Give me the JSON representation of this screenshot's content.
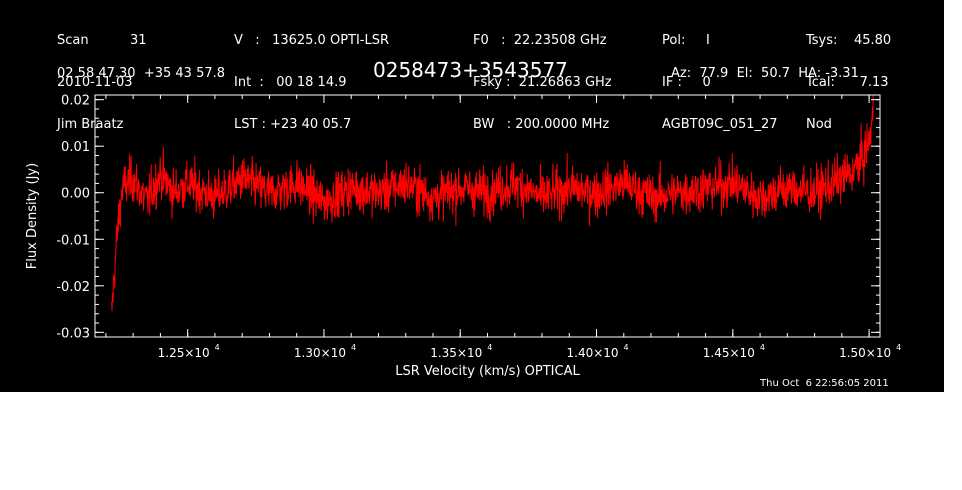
{
  "header": {
    "col1": {
      "scan_label": "Scan",
      "scan_value": "31",
      "date": "2010-11-03",
      "observer": "Jim Braatz"
    },
    "col2": {
      "line1": "V   :   13625.0 OPTI-LSR",
      "line2": "Int  :   00 18 14.9",
      "line3": "LST : +23 40 05.7"
    },
    "col3": {
      "line1": "F0   :  22.23508 GHz",
      "line2": "Fsky :  21.26863 GHz",
      "line3": "BW   : 200.0000 MHz"
    },
    "col4": {
      "line1": "Pol:     I",
      "line2": "IF :     0",
      "line3": "AGBT09C_051_27"
    },
    "col5": {
      "line1": "Tsys:    45.80",
      "line2": "Tcal:      7.13",
      "line3": "Nod"
    },
    "coordinates": "02 58 47.30  +35 43 57.8",
    "source": "0258473+3543577",
    "pointing": "Az:  77.9  El:  50.7  HA: -3.31",
    "timestamp": "Thu Oct  6 22:56:05 2011"
  },
  "colors": {
    "background": "#000000",
    "axes": "#ffffff",
    "trace": "#ff0000"
  },
  "chart_data": {
    "type": "line",
    "xlabel": "LSR Velocity (km/s) OPTICAL",
    "ylabel": "Flux Density (Jy)",
    "xlim": [
      12160,
      15040
    ],
    "ylim": [
      -0.031,
      0.021
    ],
    "xticks": [
      12500,
      13000,
      13500,
      14000,
      14500,
      15000
    ],
    "xtick_labels": [
      "1.25×10",
      "1.30×10",
      "1.35×10",
      "1.40×10",
      "1.45×10",
      "1.50×10"
    ],
    "xtick_exponent": "4",
    "yticks": [
      0.02,
      0.01,
      0.0,
      -0.01,
      -0.02,
      -0.03
    ],
    "ytick_labels": [
      "0.02",
      "0.01",
      "0.00",
      "-0.01",
      "-0.02",
      "-0.03"
    ],
    "series": [
      {
        "points": [
          [
            12220,
            -0.027
          ],
          [
            12230,
            -0.018
          ],
          [
            12240,
            -0.01
          ],
          [
            12250,
            -0.004
          ],
          [
            12260,
            0.001
          ],
          [
            12300,
            0.003
          ],
          [
            12350,
            -0.002
          ],
          [
            12400,
            0.004
          ],
          [
            12450,
            0.0
          ],
          [
            12500,
            0.002
          ],
          [
            12600,
            -0.001
          ],
          [
            12700,
            0.003
          ],
          [
            12800,
            0.0
          ],
          [
            12900,
            0.002
          ],
          [
            13000,
            -0.002
          ],
          [
            13100,
            0.001
          ],
          [
            13200,
            0.0
          ],
          [
            13300,
            0.002
          ],
          [
            13400,
            -0.001
          ],
          [
            13500,
            0.001
          ],
          [
            13600,
            0.0
          ],
          [
            13700,
            0.002
          ],
          [
            13800,
            -0.001
          ],
          [
            13900,
            0.001
          ],
          [
            14000,
            0.0
          ],
          [
            14100,
            0.002
          ],
          [
            14200,
            -0.001
          ],
          [
            14300,
            0.0
          ],
          [
            14400,
            0.001
          ],
          [
            14500,
            0.002
          ],
          [
            14600,
            -0.001
          ],
          [
            14700,
            0.001
          ],
          [
            14800,
            0.0
          ],
          [
            14900,
            0.003
          ],
          [
            14950,
            0.005
          ],
          [
            14980,
            0.008
          ],
          [
            15000,
            0.011
          ],
          [
            15010,
            0.015
          ],
          [
            15015,
            0.018
          ]
        ],
        "noise_rms": 0.0035
      }
    ]
  }
}
